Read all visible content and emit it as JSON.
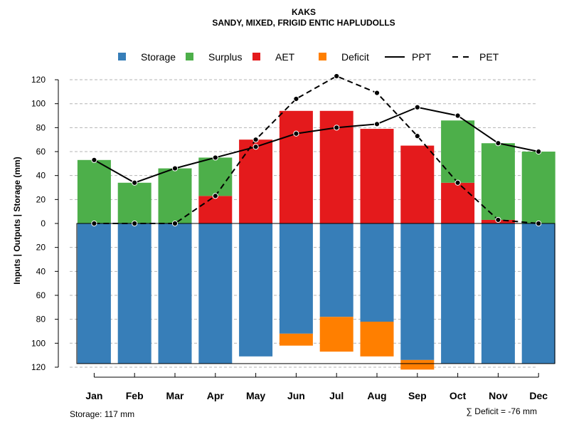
{
  "chart_data": {
    "type": "bar",
    "title": "KAKS",
    "subtitle": "SANDY, MIXED, FRIGID ENTIC HAPLUDOLLS",
    "ylabel": "Inputs | Outputs | Storage    (mm)",
    "xlabel": "",
    "categories": [
      "Jan",
      "Feb",
      "Mar",
      "Apr",
      "May",
      "Jun",
      "Jul",
      "Aug",
      "Sep",
      "Oct",
      "Nov",
      "Dec"
    ],
    "y_ticks_top": [
      0,
      20,
      40,
      60,
      80,
      100,
      120
    ],
    "y_ticks_bottom": [
      20,
      40,
      60,
      80,
      100,
      120
    ],
    "tick_labels_top": [
      "0",
      "20",
      "40",
      "60",
      "80",
      "100",
      "120"
    ],
    "tick_labels_bottom": [
      "20",
      "40",
      "60",
      "80",
      "100",
      "120"
    ],
    "ylim": [
      -120,
      130
    ],
    "grid": true,
    "legend": {
      "position": "top",
      "items": [
        {
          "label": "Storage",
          "type": "box",
          "color": "#377EB8"
        },
        {
          "label": "Surplus",
          "type": "box",
          "color": "#4DAF4A"
        },
        {
          "label": "AET",
          "type": "box",
          "color": "#E41A1C"
        },
        {
          "label": "Deficit",
          "type": "box",
          "color": "#FF7F00"
        },
        {
          "label": "PPT",
          "type": "solid"
        },
        {
          "label": "PET",
          "type": "dashed"
        }
      ]
    },
    "colors": {
      "storage": "#377EB8",
      "surplus": "#4DAF4A",
      "aet": "#E41A1C",
      "deficit": "#FF7F00",
      "line": "#000000",
      "grid": "#b4b4b4"
    },
    "series": [
      {
        "name": "AET",
        "values": [
          0,
          0,
          0,
          23,
          70,
          94,
          94,
          79,
          65,
          34,
          3,
          0
        ]
      },
      {
        "name": "Surplus",
        "values": [
          53,
          34,
          46,
          32,
          0,
          0,
          0,
          0,
          0,
          52,
          64,
          60
        ]
      },
      {
        "name": "Storage",
        "values": [
          117,
          117,
          117,
          117,
          111,
          92,
          78,
          82,
          114,
          117,
          117,
          117
        ]
      },
      {
        "name": "Deficit",
        "values": [
          0,
          0,
          0,
          0,
          0,
          10,
          29,
          29,
          8,
          0,
          0,
          0
        ]
      },
      {
        "name": "PPT",
        "values": [
          53,
          34,
          46,
          55,
          64,
          75,
          80,
          83,
          97,
          90,
          67,
          60
        ]
      },
      {
        "name": "PET",
        "values": [
          0,
          0,
          0,
          23,
          70,
          104,
          123,
          109,
          73,
          34,
          3,
          0
        ]
      }
    ],
    "storage_capacity": 117,
    "footer_left": "Storage: 117 mm",
    "footer_right": "∑ Deficit = -76 mm"
  }
}
